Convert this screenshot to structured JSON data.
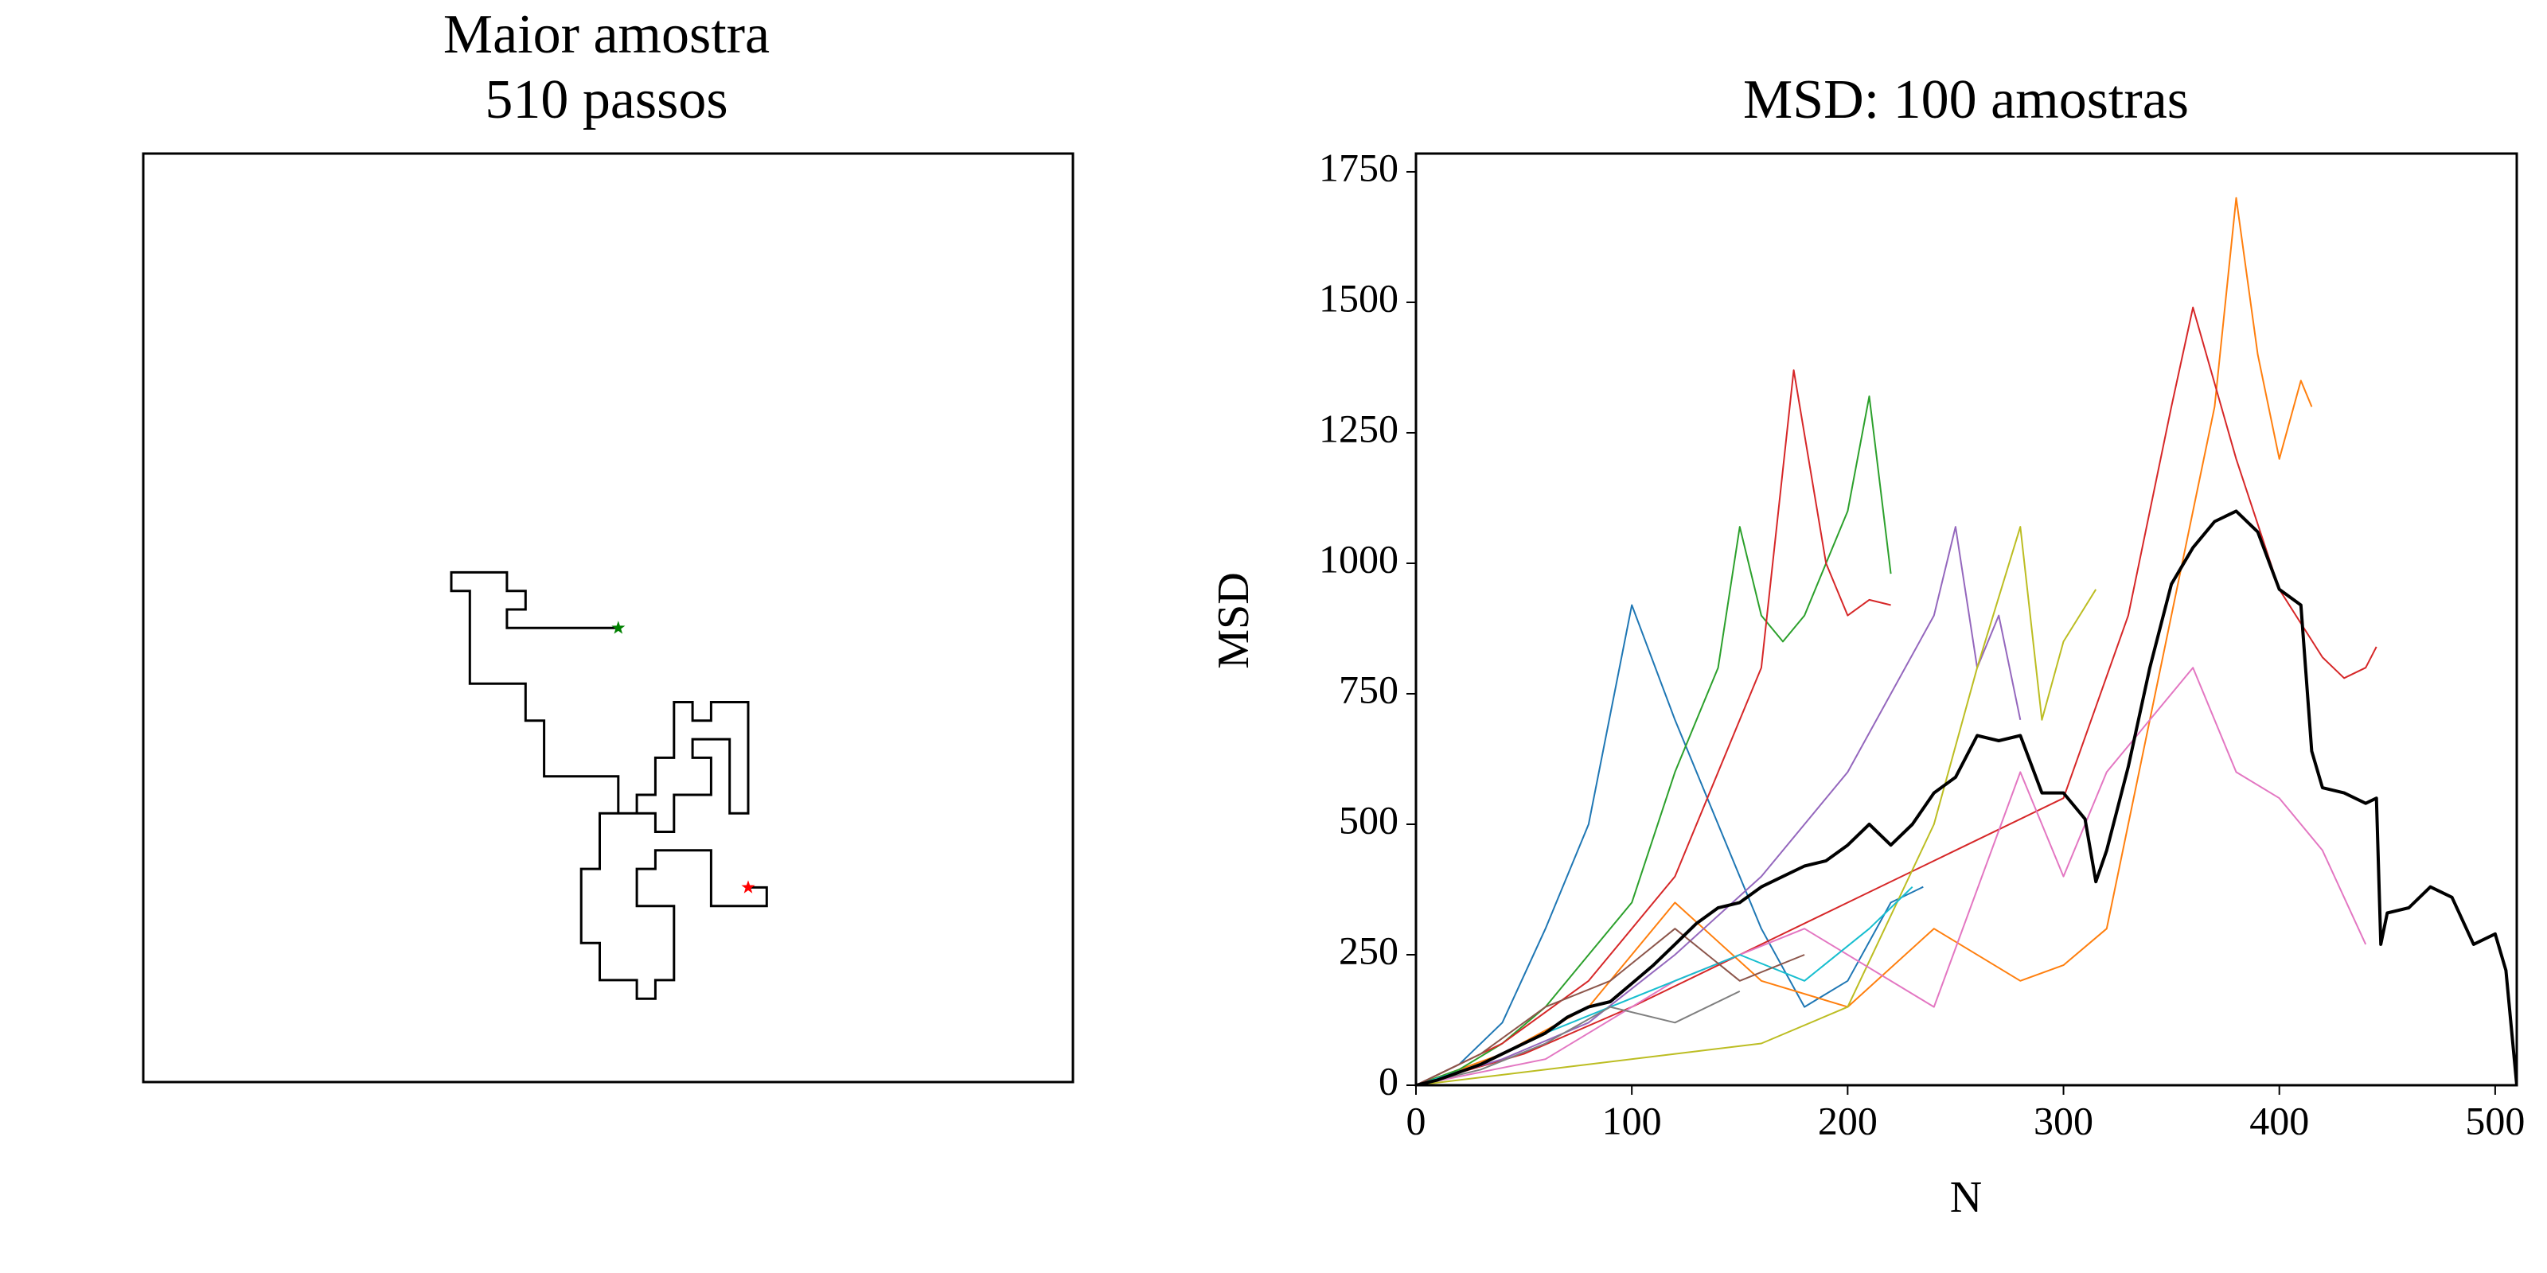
{
  "chart_data": [
    {
      "type": "walk",
      "title": "Maior amostra",
      "subtitle": "510 passos",
      "color": "#000000",
      "start_color": "#008000",
      "end_color": "#ff0000",
      "xlim": [
        -25.6,
        24.5
      ],
      "ylim": [
        -24.5,
        25.6
      ],
      "x": [
        0,
        -6,
        -6,
        -5,
        -5,
        -6,
        -6,
        -9,
        -9,
        -8,
        -8,
        -5,
        -5,
        -4,
        -4,
        0,
        0,
        1,
        1,
        2,
        2,
        3,
        3,
        4,
        4,
        5,
        5,
        7,
        7,
        6,
        6,
        4,
        4,
        5,
        5,
        3,
        3,
        2,
        2,
        -1,
        -1,
        -2,
        -2,
        -1,
        -1,
        1,
        1,
        2,
        2,
        3,
        3,
        3,
        1,
        1,
        2,
        2,
        5,
        5,
        8,
        8,
        7
      ],
      "y": [
        0,
        0,
        1,
        1,
        2,
        2,
        3,
        3,
        2,
        2,
        -3,
        -3,
        -5,
        -5,
        -8,
        -8,
        -10,
        -10,
        -9,
        -9,
        -7,
        -7,
        -4,
        -4,
        -5,
        -5,
        -4,
        -4,
        -10,
        -10,
        -6,
        -6,
        -7,
        -7,
        -9,
        -9,
        -11,
        -11,
        -10,
        -10,
        -13,
        -13,
        -17,
        -17,
        -19,
        -19,
        -20,
        -20,
        -19,
        -19,
        -16,
        -15,
        -15,
        -13,
        -13,
        -12,
        -12,
        -15,
        -15,
        -14,
        -14
      ]
    },
    {
      "type": "line",
      "title": "MSD: 100 amostras",
      "x_label": "N",
      "y_label": "MSD",
      "xlim": [
        0,
        510
      ],
      "ylim": [
        0,
        1785
      ],
      "xticks": [
        0,
        100,
        200,
        300,
        400,
        500
      ],
      "yticks": [
        0,
        250,
        500,
        750,
        1000,
        1250,
        1500,
        1750
      ],
      "series": [
        {
          "color": "#1f77b4",
          "width": 1,
          "x": [
            0,
            20,
            40,
            60,
            80,
            100,
            120,
            140,
            160,
            180,
            200,
            220,
            235
          ],
          "values": [
            0,
            40,
            120,
            300,
            500,
            920,
            700,
            500,
            300,
            150,
            200,
            350,
            380
          ]
        },
        {
          "color": "#ff7f0e",
          "width": 1,
          "x": [
            0,
            40,
            80,
            120,
            160,
            200,
            240,
            280,
            300,
            320,
            340,
            360,
            370,
            380,
            390,
            400,
            410,
            415
          ],
          "values": [
            0,
            60,
            150,
            350,
            200,
            150,
            300,
            200,
            230,
            300,
            700,
            1100,
            1300,
            1700,
            1400,
            1200,
            1350,
            1300
          ]
        },
        {
          "color": "#2ca02c",
          "width": 1,
          "x": [
            0,
            20,
            40,
            60,
            80,
            100,
            120,
            140,
            150,
            160,
            170,
            180,
            190,
            200,
            210,
            220
          ],
          "values": [
            0,
            30,
            80,
            150,
            250,
            350,
            600,
            800,
            1070,
            900,
            850,
            900,
            1000,
            1100,
            1320,
            980
          ]
        },
        {
          "color": "#d62728",
          "width": 1,
          "x": [
            0,
            40,
            80,
            120,
            160,
            175,
            190,
            200,
            210,
            220
          ],
          "values": [
            0,
            80,
            200,
            400,
            800,
            1370,
            1000,
            900,
            930,
            920
          ]
        },
        {
          "color": "#d62728",
          "width": 1,
          "x": [
            0,
            50,
            100,
            150,
            200,
            250,
            300,
            330,
            350,
            360,
            380,
            400,
            420,
            430,
            440,
            445
          ],
          "values": [
            0,
            60,
            150,
            250,
            350,
            450,
            550,
            900,
            1300,
            1490,
            1200,
            950,
            820,
            780,
            800,
            840
          ]
        },
        {
          "color": "#9467bd",
          "width": 1,
          "x": [
            0,
            40,
            80,
            120,
            160,
            200,
            240,
            250,
            260,
            270,
            280
          ],
          "values": [
            0,
            50,
            120,
            250,
            400,
            600,
            900,
            1070,
            800,
            900,
            700
          ]
        },
        {
          "color": "#bcbd22",
          "width": 1,
          "x": [
            0,
            40,
            80,
            120,
            160,
            200,
            240,
            260,
            280,
            290,
            300,
            315
          ],
          "values": [
            0,
            20,
            40,
            60,
            80,
            150,
            500,
            800,
            1070,
            700,
            850,
            950
          ]
        },
        {
          "color": "#e377c2",
          "width": 1,
          "x": [
            0,
            60,
            120,
            180,
            240,
            280,
            300,
            320,
            340,
            360,
            380,
            400,
            420,
            440
          ],
          "values": [
            0,
            50,
            200,
            300,
            150,
            600,
            400,
            600,
            700,
            800,
            600,
            550,
            450,
            270
          ]
        },
        {
          "color": "#17becf",
          "width": 1,
          "x": [
            0,
            30,
            60,
            90,
            120,
            150,
            180,
            210,
            230
          ],
          "values": [
            0,
            40,
            100,
            150,
            200,
            250,
            200,
            300,
            380
          ]
        },
        {
          "color": "#8c564b",
          "width": 1,
          "x": [
            0,
            30,
            60,
            90,
            120,
            150,
            180
          ],
          "values": [
            0,
            60,
            150,
            200,
            300,
            200,
            250
          ]
        },
        {
          "color": "#7f7f7f",
          "width": 1,
          "x": [
            0,
            30,
            60,
            90,
            120,
            150
          ],
          "values": [
            0,
            30,
            80,
            150,
            120,
            180
          ]
        },
        {
          "color": "#000000",
          "width": 2,
          "x": [
            0,
            10,
            20,
            30,
            40,
            50,
            60,
            70,
            80,
            90,
            100,
            110,
            120,
            130,
            140,
            150,
            160,
            170,
            180,
            190,
            200,
            210,
            220,
            230,
            240,
            250,
            260,
            270,
            280,
            290,
            300,
            310,
            315,
            320,
            330,
            340,
            350,
            360,
            370,
            380,
            390,
            400,
            410,
            415,
            420,
            430,
            440,
            445,
            447,
            450,
            460,
            470,
            480,
            490,
            500,
            505,
            510
          ],
          "values": [
            0,
            10,
            25,
            40,
            60,
            80,
            100,
            130,
            150,
            160,
            195,
            230,
            270,
            310,
            340,
            350,
            380,
            400,
            420,
            430,
            460,
            500,
            460,
            500,
            560,
            590,
            670,
            660,
            670,
            560,
            560,
            510,
            390,
            450,
            610,
            800,
            960,
            1030,
            1080,
            1100,
            1060,
            950,
            920,
            640,
            570,
            560,
            540,
            550,
            270,
            330,
            340,
            380,
            360,
            270,
            290,
            220,
            0
          ]
        }
      ]
    }
  ]
}
